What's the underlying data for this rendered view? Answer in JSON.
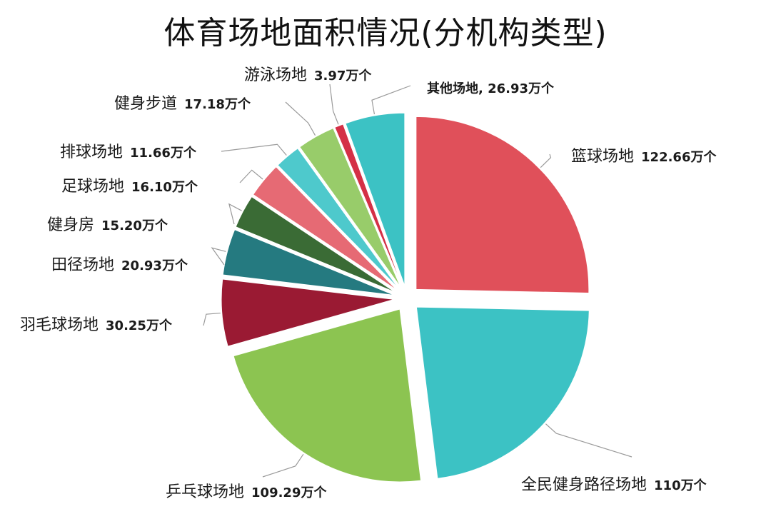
{
  "chart_data": {
    "type": "pie",
    "title": "体育场地面积情况(分机构类型)",
    "unit": "万个",
    "slices": [
      {
        "name": "篮球场地",
        "value": 122.66,
        "label": "122.66万个",
        "color": "#e0505a"
      },
      {
        "name": "全民健身路径场地",
        "value": 110,
        "label": "110万个",
        "color": "#3cc2c4"
      },
      {
        "name": "乒乓球场地",
        "value": 109.29,
        "label": "109.29万个",
        "color": "#8cc451"
      },
      {
        "name": "羽毛球场地",
        "value": 30.25,
        "label": "30.25万个",
        "color": "#9a1a33"
      },
      {
        "name": "田径场地",
        "value": 20.93,
        "label": "20.93万个",
        "color": "#257a80"
      },
      {
        "name": "健身房",
        "value": 15.2,
        "label": "15.20万个",
        "color": "#3a6b35"
      },
      {
        "name": "足球场地",
        "value": 16.1,
        "label": "16.10万个",
        "color": "#e66a74"
      },
      {
        "name": "排球场地",
        "value": 11.66,
        "label": "11.66万个",
        "color": "#4ec9cc"
      },
      {
        "name": "健身步道",
        "value": 17.18,
        "label": "17.18万个",
        "color": "#98cc6a"
      },
      {
        "name": "游泳场地",
        "value": 3.97,
        "label": "3.97万个",
        "color": "#d43046"
      },
      {
        "name": "其他场地",
        "value": 26.93,
        "label": "其他场地, 26.93万个",
        "color": "#3cc2c4"
      }
    ],
    "legend": "none"
  }
}
